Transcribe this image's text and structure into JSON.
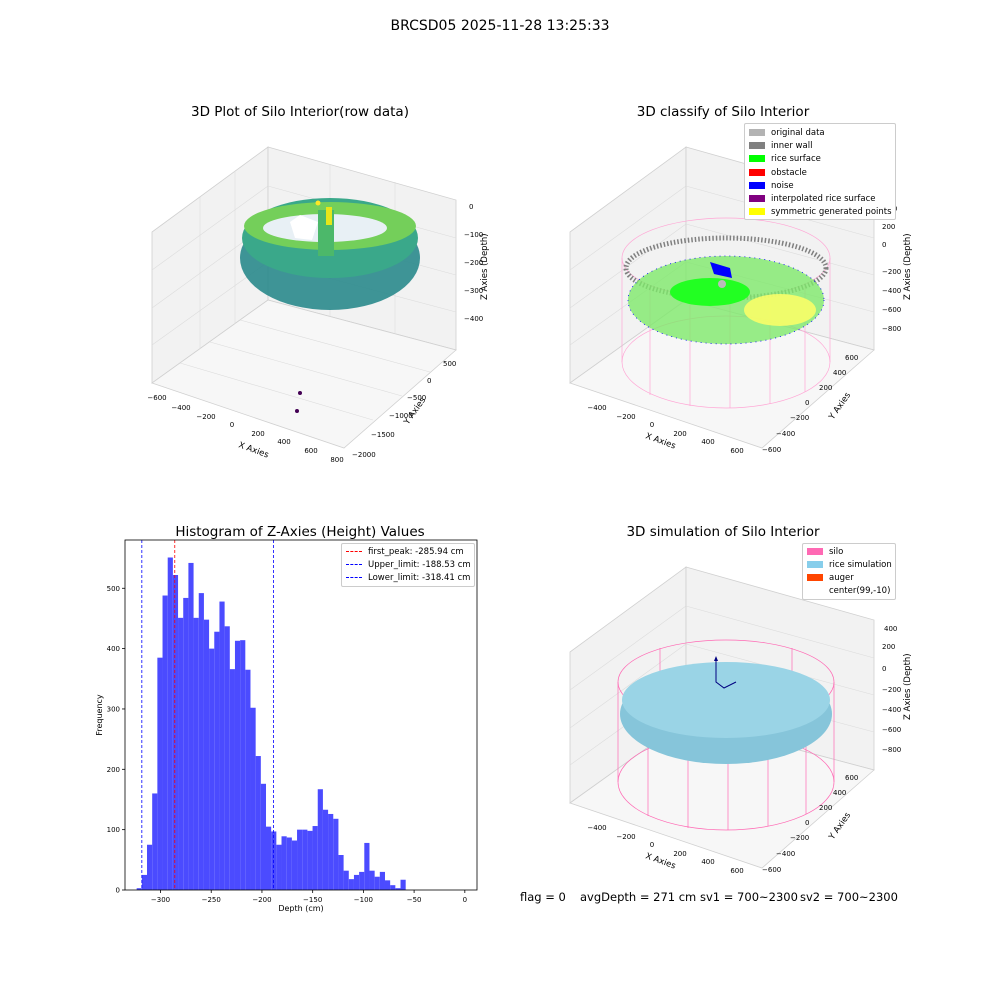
{
  "figure_title": "BRCSD05 2025-11-28 13:25:33",
  "colors": {
    "histogram_bar": "#4b4bff",
    "first_peak_line": "#ff0000",
    "limit_lines": "#0000ff",
    "original_data": "#b3b3b3",
    "inner_wall": "#808080",
    "rice_surface": "#00ff00",
    "obstacle": "#ff0000",
    "noise": "#0000ff",
    "interpolated_rice_surface": "#800080",
    "symmetric_generated_points": "#ffff00",
    "silo": "#ff69b4",
    "rice_simulation": "#87ceeb",
    "auger": "#ff4500"
  },
  "panel_raw": {
    "title": "3D Plot of Silo Interior(row data)",
    "x_label": "X Axies",
    "y_label": "Y Axies",
    "z_label": "Z Axies (Depth)",
    "x_ticks": [
      "−600",
      "−400",
      "−200",
      "0",
      "200",
      "400",
      "600",
      "800"
    ],
    "y_ticks": [
      "500",
      "0",
      "−500",
      "−1000",
      "−1500",
      "−2000"
    ],
    "z_ticks": [
      "0",
      "−100",
      "−200",
      "−300",
      "−400"
    ]
  },
  "panel_classify": {
    "title": "3D classify of Silo Interior",
    "x_label": "X Axies",
    "y_label": "Y Axies",
    "z_label": "Z Axies (Depth)",
    "x_ticks": [
      "−400",
      "−200",
      "0",
      "200",
      "400",
      "600"
    ],
    "y_ticks": [
      "600",
      "400",
      "200",
      "0",
      "−200",
      "−400",
      "−600"
    ],
    "z_ticks": [
      "400",
      "200",
      "0",
      "−200",
      "−400",
      "−600",
      "−800"
    ],
    "legend": [
      {
        "label": "original data",
        "color": "#b3b3b3"
      },
      {
        "label": "inner wall",
        "color": "#808080"
      },
      {
        "label": "rice surface",
        "color": "#00ff00"
      },
      {
        "label": "obstacle",
        "color": "#ff0000"
      },
      {
        "label": "noise",
        "color": "#0000ff"
      },
      {
        "label": "interpolated rice surface",
        "color": "#800080"
      },
      {
        "label": "symmetric generated points",
        "color": "#ffff00"
      }
    ]
  },
  "panel_simulation": {
    "title": "3D simulation of Silo Interior",
    "x_label": "X Axies",
    "y_label": "Y Axies",
    "z_label": "Z Axies (Depth)",
    "x_ticks": [
      "−400",
      "−200",
      "0",
      "200",
      "400",
      "600"
    ],
    "y_ticks": [
      "600",
      "400",
      "200",
      "0",
      "−200",
      "−400",
      "−600"
    ],
    "z_ticks": [
      "400",
      "200",
      "0",
      "−200",
      "−400",
      "−600",
      "−800"
    ],
    "legend": [
      {
        "label": "silo",
        "color": "#ff69b4"
      },
      {
        "label": "rice simulation",
        "color": "#87ceeb"
      },
      {
        "label": "auger",
        "color": "#ff4500"
      },
      {
        "label": "center(99,-10)",
        "color": ""
      }
    ]
  },
  "status": {
    "flag": "flag = 0",
    "avg_depth": "avgDepth = 271 cm",
    "sv1": "sv1 = 700~2300",
    "sv2": "sv2 = 700~2300"
  },
  "chart_data": {
    "type": "bar",
    "title": "Histogram of Z-Axies (Height) Values",
    "xlabel": "Depth (cm)",
    "ylabel": "Frequency",
    "xlim": [
      -335,
      12
    ],
    "ylim": [
      0,
      580
    ],
    "x_ticks": [
      -300,
      -250,
      -200,
      -150,
      -100,
      -50,
      0
    ],
    "x_tick_labels": [
      "−300",
      "−250",
      "−200",
      "−150",
      "−100",
      "−50",
      "0"
    ],
    "y_ticks": [
      0,
      100,
      200,
      300,
      400,
      500
    ],
    "y_tick_labels": [
      "0",
      "100",
      "200",
      "300",
      "400",
      "500"
    ],
    "bin_width": 5.1,
    "bin_start": -323.5,
    "values": [
      3,
      25,
      75,
      160,
      385,
      488,
      551,
      522,
      451,
      484,
      542,
      451,
      492,
      448,
      400,
      428,
      478,
      437,
      366,
      413,
      414,
      365,
      302,
      222,
      176,
      105,
      97,
      75,
      89,
      87,
      82,
      100,
      100,
      98,
      106,
      167,
      133,
      126,
      118,
      58,
      32,
      18,
      25,
      30,
      78,
      32,
      22,
      30,
      16,
      8,
      3,
      17
    ],
    "vlines": [
      {
        "label": "first_peak: -285.94 cm",
        "x": -285.94,
        "color": "#ff0000"
      },
      {
        "label": "Upper_limit: -188.53 cm",
        "x": -188.53,
        "color": "#0000ff"
      },
      {
        "label": "Lower_limit: -318.41 cm",
        "x": -318.41,
        "color": "#0000ff"
      }
    ],
    "legend_position": "upper right",
    "grid": false
  }
}
